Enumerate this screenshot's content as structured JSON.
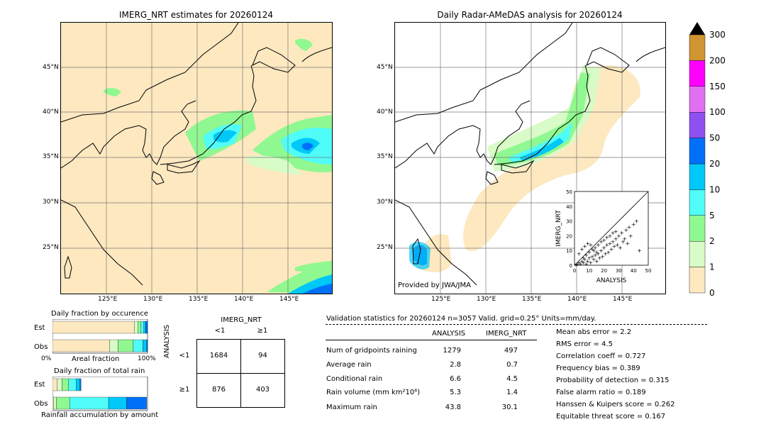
{
  "left_map": {
    "title": "IMERG_NRT estimates for 20260124",
    "lat_labels": [
      "45°N",
      "40°N",
      "35°N",
      "30°N",
      "25°N"
    ],
    "lon_labels": [
      "125°E",
      "130°E",
      "135°E",
      "140°E",
      "145°E"
    ]
  },
  "right_map": {
    "title": "Daily Radar-AMeDAS analysis for 20260124",
    "lat_labels": [
      "45°N",
      "40°N",
      "35°N",
      "30°N",
      "25°N"
    ],
    "lon_labels": [
      "125°E",
      "130°E",
      "135°E",
      "140°E",
      "145°E"
    ],
    "credit": "Provided by JWA/JMA"
  },
  "colorbar": {
    "levels": [
      "0",
      "1",
      "2",
      "5",
      "10",
      "20",
      "50",
      "100",
      "150",
      "200",
      "300"
    ],
    "colors": [
      "#fde8c0",
      "#d8fbc8",
      "#90f890",
      "#50fcf8",
      "#00c8f8",
      "#0070f8",
      "#9050f0",
      "#e070f0",
      "#ff00ff",
      "#d09430"
    ]
  },
  "chart_data": [
    {
      "type": "scatter",
      "title": "",
      "xlabel": "ANALYSIS",
      "ylabel": "IMERG_NRT",
      "xlim": [
        0,
        50
      ],
      "ylim": [
        0,
        50
      ],
      "ticks": [
        "0",
        "10",
        "20",
        "30",
        "40",
        "50"
      ],
      "points": [
        [
          1,
          0.5
        ],
        [
          2,
          1
        ],
        [
          3,
          2
        ],
        [
          4,
          1
        ],
        [
          5,
          3
        ],
        [
          6,
          2
        ],
        [
          7,
          4
        ],
        [
          8,
          1
        ],
        [
          9,
          3
        ],
        [
          10,
          5
        ],
        [
          11,
          2
        ],
        [
          12,
          6
        ],
        [
          13,
          4
        ],
        [
          14,
          7
        ],
        [
          15,
          3
        ],
        [
          16,
          8
        ],
        [
          17,
          5
        ],
        [
          18,
          10
        ],
        [
          19,
          6
        ],
        [
          20,
          12
        ],
        [
          21,
          8
        ],
        [
          22,
          14
        ],
        [
          23,
          9
        ],
        [
          24,
          15
        ],
        [
          25,
          11
        ],
        [
          26,
          16
        ],
        [
          27,
          13
        ],
        [
          28,
          18
        ],
        [
          29,
          14
        ],
        [
          30,
          20
        ],
        [
          31,
          12
        ],
        [
          32,
          22
        ],
        [
          33,
          16
        ],
        [
          34,
          18
        ],
        [
          35,
          24
        ],
        [
          36,
          15
        ],
        [
          37,
          26
        ],
        [
          38,
          20
        ],
        [
          40,
          28
        ],
        [
          42,
          30
        ],
        [
          44,
          10
        ],
        [
          3,
          8
        ],
        [
          5,
          11
        ],
        [
          7,
          13
        ],
        [
          9,
          15
        ],
        [
          11,
          14
        ],
        [
          13,
          10
        ],
        [
          15,
          9
        ],
        [
          6,
          5
        ],
        [
          8,
          7
        ],
        [
          10,
          9
        ],
        [
          12,
          11
        ],
        [
          14,
          12
        ],
        [
          16,
          14
        ],
        [
          18,
          16
        ],
        [
          20,
          17
        ],
        [
          22,
          19
        ],
        [
          24,
          20
        ],
        [
          26,
          22
        ],
        [
          28,
          23
        ]
      ]
    },
    {
      "type": "bar",
      "title": "Daily fraction by occurence",
      "categories": [
        "Est",
        "Obs"
      ],
      "series": [
        {
          "name": "0",
          "values": [
            0.86,
            0.6
          ]
        },
        {
          "name": "1",
          "values": [
            0.04,
            0.09
          ]
        },
        {
          "name": "2",
          "values": [
            0.03,
            0.16
          ]
        },
        {
          "name": "5",
          "values": [
            0.03,
            0.1
          ]
        },
        {
          "name": "10",
          "values": [
            0.02,
            0.04
          ]
        },
        {
          "name": "20",
          "values": [
            0.02,
            0.01
          ]
        }
      ],
      "xlabel": "Areal fraction",
      "x_ticks": [
        "0%",
        "100%"
      ]
    },
    {
      "type": "bar",
      "title": "Daily fraction of total rain",
      "categories": [
        "Est",
        "Obs"
      ],
      "series": [
        {
          "name": "0",
          "values": [
            0.05,
            0.01
          ]
        },
        {
          "name": "1",
          "values": [
            0.05,
            0.03
          ]
        },
        {
          "name": "2",
          "values": [
            0.07,
            0.14
          ]
        },
        {
          "name": "5",
          "values": [
            0.08,
            0.41
          ]
        },
        {
          "name": "10",
          "values": [
            0.04,
            0.19
          ]
        },
        {
          "name": "20",
          "values": [
            0.01,
            0.21
          ]
        }
      ],
      "xlabel": "Rainfall accumulation by amount"
    },
    {
      "type": "table",
      "title": "IMERG_NRT",
      "col_headers": [
        "<1",
        "≥1"
      ],
      "row_title": "ANALYSIS",
      "row_headers": [
        "<1",
        "≥1"
      ],
      "values": [
        [
          "1684",
          "94"
        ],
        [
          "876",
          "403"
        ]
      ]
    }
  ],
  "validation": {
    "header": "Validation statistics for 20260124  n=3057 Valid. grid=0.25° Units=mm/day.",
    "col_headers": [
      "ANALYSIS",
      "IMERG_NRT"
    ],
    "rows": [
      {
        "label": "Num of gridpoints raining",
        "analysis": "1279",
        "imerg": "497"
      },
      {
        "label": "Average rain",
        "analysis": "2.8",
        "imerg": "0.7"
      },
      {
        "label": "Conditional rain",
        "analysis": "6.6",
        "imerg": "4.5"
      },
      {
        "label": "Rain volume (mm km²10⁶)",
        "analysis": "5.3",
        "imerg": "1.4"
      },
      {
        "label": "Maximum rain",
        "analysis": "43.8",
        "imerg": "30.1"
      }
    ],
    "scores": [
      "Mean abs error =    2.2",
      "RMS error =    4.5",
      "Correlation coeff =  0.727",
      "Frequency bias =  0.389",
      "Probability of detection =  0.315",
      "False alarm ratio =  0.189",
      "Hanssen & Kuipers score =  0.262",
      "Equitable threat score =  0.167"
    ]
  }
}
